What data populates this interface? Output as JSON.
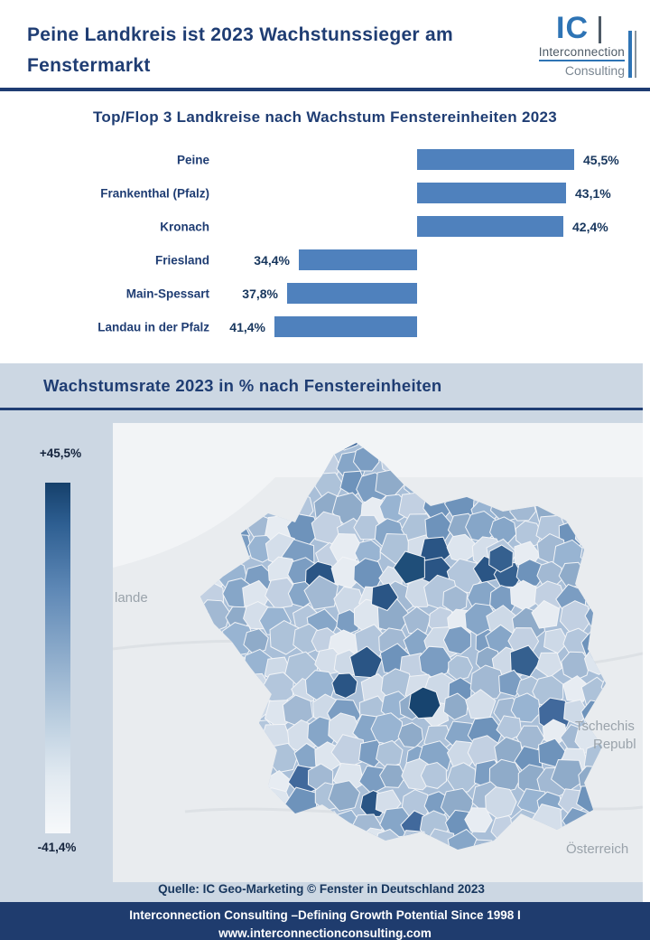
{
  "header": {
    "title_line1": "Peine Landkreis ist 2023 Wachstunssieger am",
    "title_line2": "Fenstermarkt",
    "logo": {
      "mark": "IC",
      "name": "Interconnection",
      "suffix": "Consulting"
    }
  },
  "chart_data": [
    {
      "type": "bar",
      "orientation": "horizontal",
      "title": "Top/Flop 3 Landkreise nach Wachstum Fenstereinheiten 2023",
      "categories": [
        "Peine",
        "Frankenthal (Pfalz)",
        "Kronach",
        "Friesland",
        "Main-Spessart",
        "Landau in der Pfalz"
      ],
      "values": [
        45.5,
        43.1,
        42.4,
        -34.4,
        -37.8,
        -41.4
      ],
      "value_labels": [
        "45,5%",
        "43,1%",
        "42,4%",
        "34,4%",
        "37,8%",
        "41,4%"
      ],
      "bar_color": "#4f81bd",
      "xlim": [
        -50,
        50
      ],
      "grid": false,
      "legend_position": "none"
    },
    {
      "type": "heatmap",
      "subtype": "choropleth-map",
      "title": "Wachstumsrate 2023 in % nach Fenstereinheiten",
      "region": "Deutschland (Landkreise)",
      "legend": {
        "max_label": "+45,5%",
        "min_label": "-41,4%",
        "max_color": "#15406b",
        "min_color": "#f7f9fb"
      },
      "map_labels": [
        "lande",
        "Tschechis",
        "Republ",
        "Österreich"
      ]
    }
  ],
  "footer": {
    "source": "Quelle: IC Geo-Marketing © Fenster in Deutschland 2023",
    "band_line1": "Interconnection Consulting –Defining Growth Potential  Since 1998 I",
    "band_line2": "www.interconnectionconsulting.com"
  }
}
